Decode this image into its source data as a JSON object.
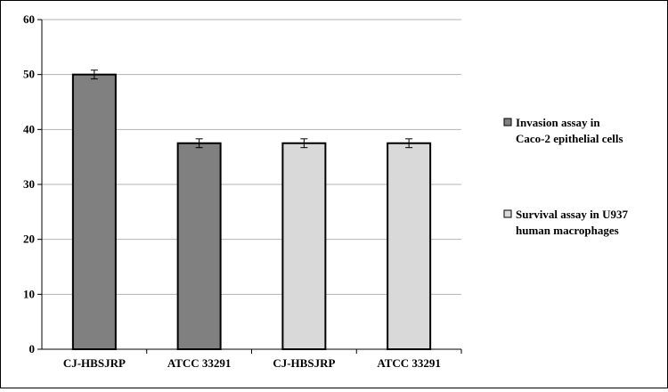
{
  "chart_data": {
    "type": "bar",
    "title": "",
    "xlabel": "",
    "ylabel": "",
    "ylim": [
      0,
      60
    ],
    "yticks": [
      0,
      10,
      20,
      30,
      40,
      50,
      60
    ],
    "grid": true,
    "legend_position": "right",
    "categories": [
      "CJ-HBSJRP",
      "ATCC 33291",
      "CJ-HBSJRP",
      "ATCC 33291"
    ],
    "values": [
      50,
      37.5,
      37.5,
      37.5
    ],
    "errors": [
      0.8,
      0.8,
      0.8,
      0.8
    ],
    "bar_series": [
      0,
      0,
      1,
      1
    ],
    "series": [
      {
        "name": "Invasion assay in Caco-2 epithelial cells",
        "legend_lines": [
          "Invasion assay in",
          "Caco-2 epithelial cells"
        ],
        "color": "#808080"
      },
      {
        "name": "Survival assay in U937 human macrophages",
        "legend_lines": [
          "Survival assay in U937",
          "human macrophages"
        ],
        "color": "#d9d9d9"
      }
    ]
  }
}
